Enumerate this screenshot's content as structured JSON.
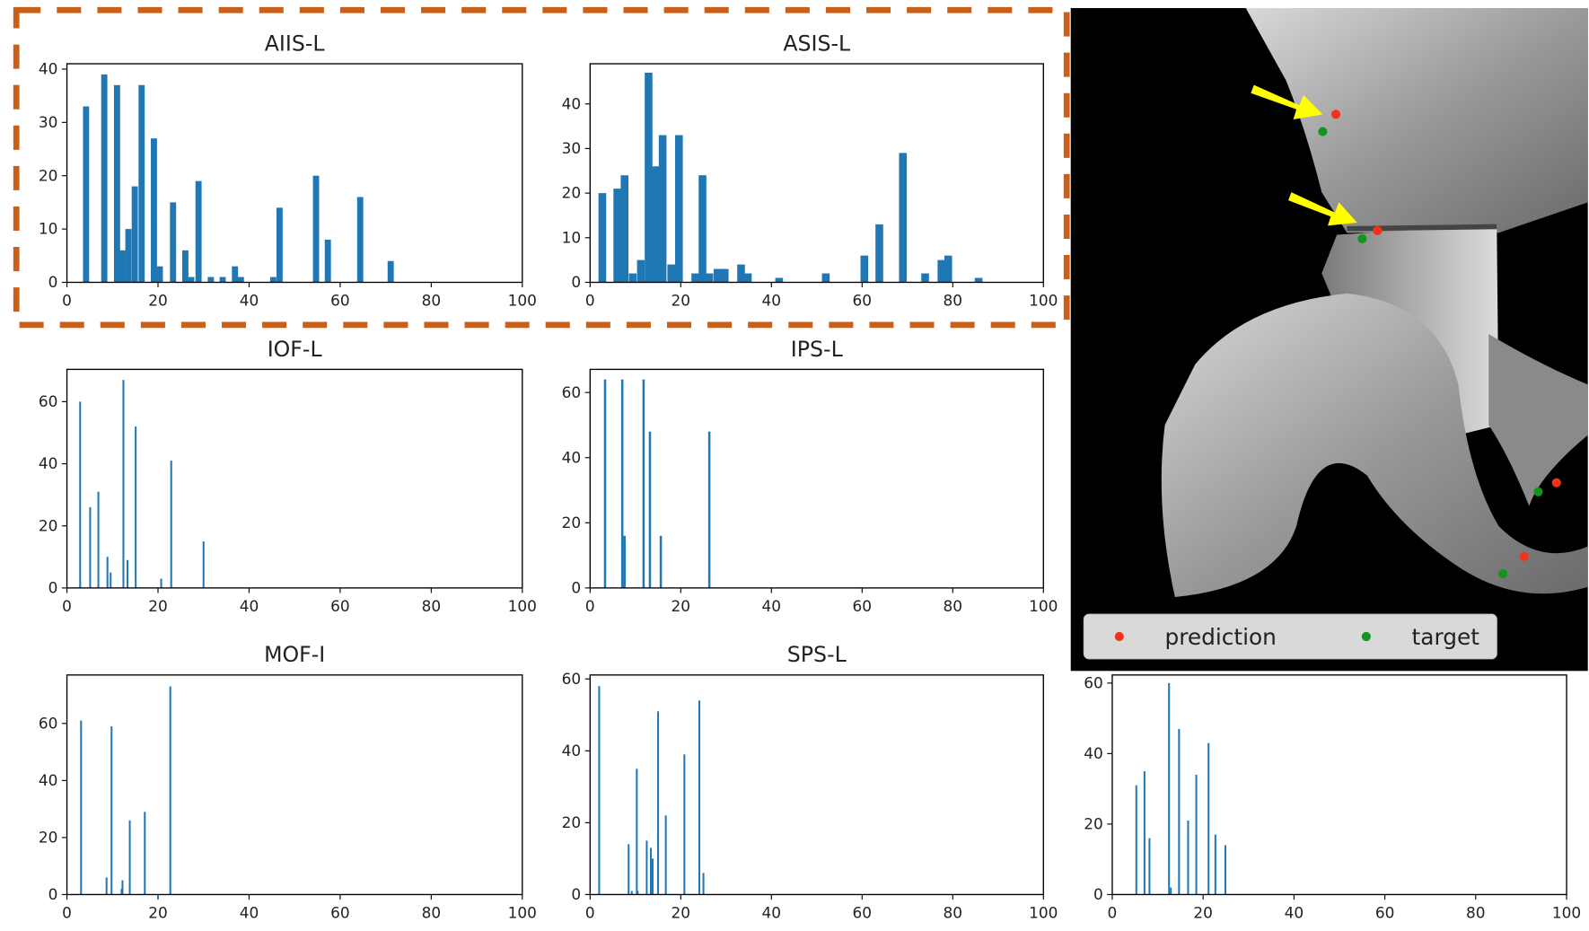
{
  "chart_data": [
    {
      "type": "bar",
      "title": "AIIS-L",
      "color": "#1f77b4",
      "x": [
        4.2,
        8.2,
        11,
        12.2,
        13.5,
        14.9,
        16.4,
        19.1,
        20.4,
        23.3,
        26,
        27.3,
        28.9,
        31.6,
        34.2,
        36.9,
        38.2,
        45.3,
        46.7,
        54.7,
        57.3,
        64.4,
        71.1
      ],
      "values": [
        33,
        39,
        37,
        6,
        10,
        18,
        37,
        27,
        3,
        15,
        6,
        1,
        19,
        1,
        1,
        3,
        1,
        1,
        14,
        20,
        8,
        16,
        4
      ],
      "xlim": [
        0,
        100
      ],
      "xticks": [
        0,
        20,
        40,
        60,
        80,
        100
      ],
      "ylim": [
        0,
        41
      ],
      "yticks": [
        0,
        10,
        20,
        30,
        40
      ]
    },
    {
      "type": "bar",
      "title": "ASIS-L",
      "color": "#1f77b4",
      "x": [
        2.7,
        6,
        7.6,
        9.4,
        11.2,
        12.9,
        14.5,
        16,
        17.9,
        19.6,
        23.2,
        24.8,
        26.3,
        28.1,
        29.7,
        33.3,
        34.8,
        41.7,
        52,
        60.5,
        63.8,
        69,
        73.9,
        77.5,
        79,
        85.7
      ],
      "values": [
        20,
        21,
        24,
        2,
        5,
        47,
        26,
        33,
        4,
        33,
        2,
        24,
        2,
        3,
        3,
        4,
        2,
        1,
        2,
        6,
        13,
        29,
        2,
        5,
        6,
        1
      ],
      "xlim": [
        0,
        100
      ],
      "xticks": [
        0,
        20,
        40,
        60,
        80,
        100
      ],
      "ylim": [
        0,
        49
      ],
      "yticks": [
        0,
        10,
        20,
        30,
        40
      ]
    },
    {
      "type": "bar",
      "title": "IOF-L",
      "color": "#1f77b4",
      "x": [
        2.9,
        5.1,
        6.9,
        8.9,
        9.6,
        12.4,
        13.3,
        15.1,
        20.7,
        22.9,
        30
      ],
      "values": [
        60,
        26,
        31,
        10,
        5,
        67,
        9,
        52,
        3,
        41,
        15
      ],
      "xlim": [
        0,
        100
      ],
      "xticks": [
        0,
        20,
        40,
        60,
        80,
        100
      ],
      "ylim": [
        0,
        70.4
      ],
      "yticks": [
        0,
        20,
        40,
        60
      ]
    },
    {
      "type": "bar",
      "title": "IPS-L",
      "color": "#1f77b4",
      "x": [
        3.3,
        7.1,
        7.6,
        11.8,
        13.2,
        15.6,
        26.3
      ],
      "values": [
        64,
        64,
        16,
        64,
        48,
        16,
        48
      ],
      "xlim": [
        0,
        100
      ],
      "xticks": [
        0,
        20,
        40,
        60,
        80,
        100
      ],
      "ylim": [
        0,
        67.1
      ],
      "yticks": [
        0,
        20,
        40,
        60
      ]
    },
    {
      "type": "bar",
      "title": "MOF-I",
      "color": "#1f77b4",
      "x": [
        3.1,
        8.7,
        9.8,
        12,
        12.2,
        13.8,
        17.1,
        22.7
      ],
      "values": [
        61,
        6,
        59,
        2,
        5,
        26,
        29,
        73
      ],
      "xlim": [
        0,
        100
      ],
      "xticks": [
        0,
        20,
        40,
        60,
        80,
        100
      ],
      "ylim": [
        0,
        77
      ],
      "yticks": [
        0,
        20,
        40,
        60
      ]
    },
    {
      "type": "bar",
      "title": "SPS-L",
      "color": "#1f77b4",
      "x": [
        2,
        8.5,
        9.2,
        10.3,
        10.5,
        12.5,
        13.4,
        13.8,
        15,
        16.7,
        20.8,
        24.1,
        25
      ],
      "values": [
        58,
        14,
        1,
        35,
        1,
        15,
        13,
        10,
        51,
        22,
        39,
        54,
        6
      ],
      "xlim": [
        0,
        100
      ],
      "xticks": [
        0,
        20,
        40,
        60,
        80,
        100
      ],
      "ylim": [
        0,
        61.1
      ],
      "yticks": [
        0,
        20,
        40,
        60
      ]
    },
    {
      "type": "bar",
      "color": "#1f77b4",
      "x": [
        5.3,
        7.1,
        8.2,
        12.5,
        12.9,
        14.7,
        16.7,
        18.5,
        21.2,
        22.7,
        24.9
      ],
      "values": [
        31,
        35,
        16,
        60,
        2,
        47,
        21,
        34,
        43,
        17,
        14
      ],
      "xlim": [
        0,
        100
      ],
      "xticks": [
        0,
        20,
        40,
        60,
        80,
        100
      ],
      "ylim": [
        0,
        62.3
      ],
      "yticks": [
        0,
        20,
        40,
        60
      ]
    },
    {
      "type": "scatter",
      "legend": "lower left",
      "series": [
        {
          "name": "prediction",
          "color": "#f5311c",
          "x": [
            262,
            303,
            480,
            448
          ],
          "y": [
            105,
            220,
            469,
            542
          ]
        },
        {
          "name": "target",
          "color": "#11961b",
          "x": [
            249,
            288,
            462,
            427
          ],
          "y": [
            122,
            228,
            478,
            559
          ]
        }
      ]
    }
  ]
}
